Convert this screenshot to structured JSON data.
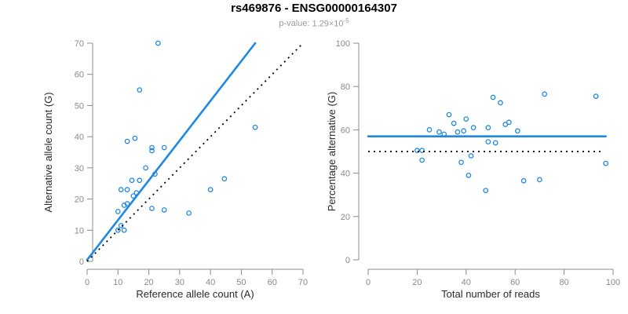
{
  "header": {
    "title": "rs469876 - ENSG00000164307",
    "pvalue_label": "p-value:",
    "pvalue_base": "1.29×10",
    "pvalue_exponent": "-5"
  },
  "colors": {
    "accent_blue": "#1E88E5",
    "dotted_black": "#000000",
    "axis_gray": "#8c8c8c",
    "tick_label_gray": "#8a8a8a"
  },
  "chart_data": [
    {
      "type": "scatter",
      "name": "allele-count-scatter",
      "xlabel": "Reference allele count (A)",
      "ylabel": "Alternative allele count (G)",
      "xlim": [
        0,
        70
      ],
      "ylim": [
        0,
        70
      ],
      "xticks": [
        0,
        10,
        20,
        30,
        40,
        50,
        60,
        70
      ],
      "yticks": [
        0,
        10,
        20,
        30,
        40,
        50,
        60,
        70
      ],
      "grid": false,
      "legend": null,
      "marker": {
        "shape": "open-circle",
        "color": "#1E88E5"
      },
      "points": [
        [
          23,
          70
        ],
        [
          17,
          55
        ],
        [
          54.5,
          43
        ],
        [
          15.5,
          39.5
        ],
        [
          13,
          38.5
        ],
        [
          21,
          36.5
        ],
        [
          25,
          36.5
        ],
        [
          21,
          35.5
        ],
        [
          19,
          30
        ],
        [
          22,
          28
        ],
        [
          44.5,
          26.5
        ],
        [
          14.5,
          26
        ],
        [
          17,
          26
        ],
        [
          40,
          23
        ],
        [
          11,
          23
        ],
        [
          13,
          23
        ],
        [
          16,
          22
        ],
        [
          15,
          21
        ],
        [
          13,
          18.5
        ],
        [
          12,
          18
        ],
        [
          21,
          17
        ],
        [
          25,
          16.5
        ],
        [
          10,
          16
        ],
        [
          33,
          15.5
        ],
        [
          11,
          11.5
        ],
        [
          10,
          10
        ],
        [
          12,
          10
        ]
      ],
      "lines": [
        {
          "style": "solid",
          "color": "#1E88E5",
          "from": [
            0,
            0.5
          ],
          "to": [
            54.5,
            70
          ]
        },
        {
          "style": "dotted",
          "color": "#000000",
          "from": [
            0,
            0
          ],
          "to": [
            70,
            70
          ]
        }
      ]
    },
    {
      "type": "scatter",
      "name": "percentage-reads-scatter",
      "xlabel": "Total number of reads",
      "ylabel": "Percentage alternative (G)",
      "xlim": [
        0,
        100
      ],
      "ylim": [
        0,
        100
      ],
      "xticks": [
        0,
        20,
        40,
        60,
        80,
        100
      ],
      "yticks": [
        0,
        20,
        40,
        60,
        80,
        100
      ],
      "grid": false,
      "legend": null,
      "marker": {
        "shape": "open-circle",
        "color": "#1E88E5"
      },
      "points": [
        [
          93,
          75.5
        ],
        [
          72,
          76.5
        ],
        [
          51,
          75
        ],
        [
          54,
          72.5
        ],
        [
          33,
          67
        ],
        [
          40,
          65
        ],
        [
          35,
          63
        ],
        [
          57.5,
          63.5
        ],
        [
          56,
          62.5
        ],
        [
          43,
          61
        ],
        [
          49,
          61
        ],
        [
          25,
          60
        ],
        [
          39,
          59.5
        ],
        [
          61,
          59.5
        ],
        [
          29,
          59
        ],
        [
          36.5,
          59
        ],
        [
          31,
          58
        ],
        [
          49,
          54.5
        ],
        [
          52,
          54
        ],
        [
          20,
          50.5
        ],
        [
          22,
          50.5
        ],
        [
          42,
          48
        ],
        [
          22,
          46
        ],
        [
          38,
          45
        ],
        [
          97,
          44.5
        ],
        [
          41,
          39
        ],
        [
          70,
          37
        ],
        [
          63.5,
          36.5
        ],
        [
          48,
          32
        ]
      ],
      "lines": [
        {
          "style": "solid",
          "color": "#1E88E5",
          "from": [
            0,
            57
          ],
          "to": [
            97,
            57
          ]
        },
        {
          "style": "dotted",
          "color": "#000000",
          "from": [
            0,
            50
          ],
          "to": [
            96,
            50
          ]
        }
      ]
    }
  ]
}
